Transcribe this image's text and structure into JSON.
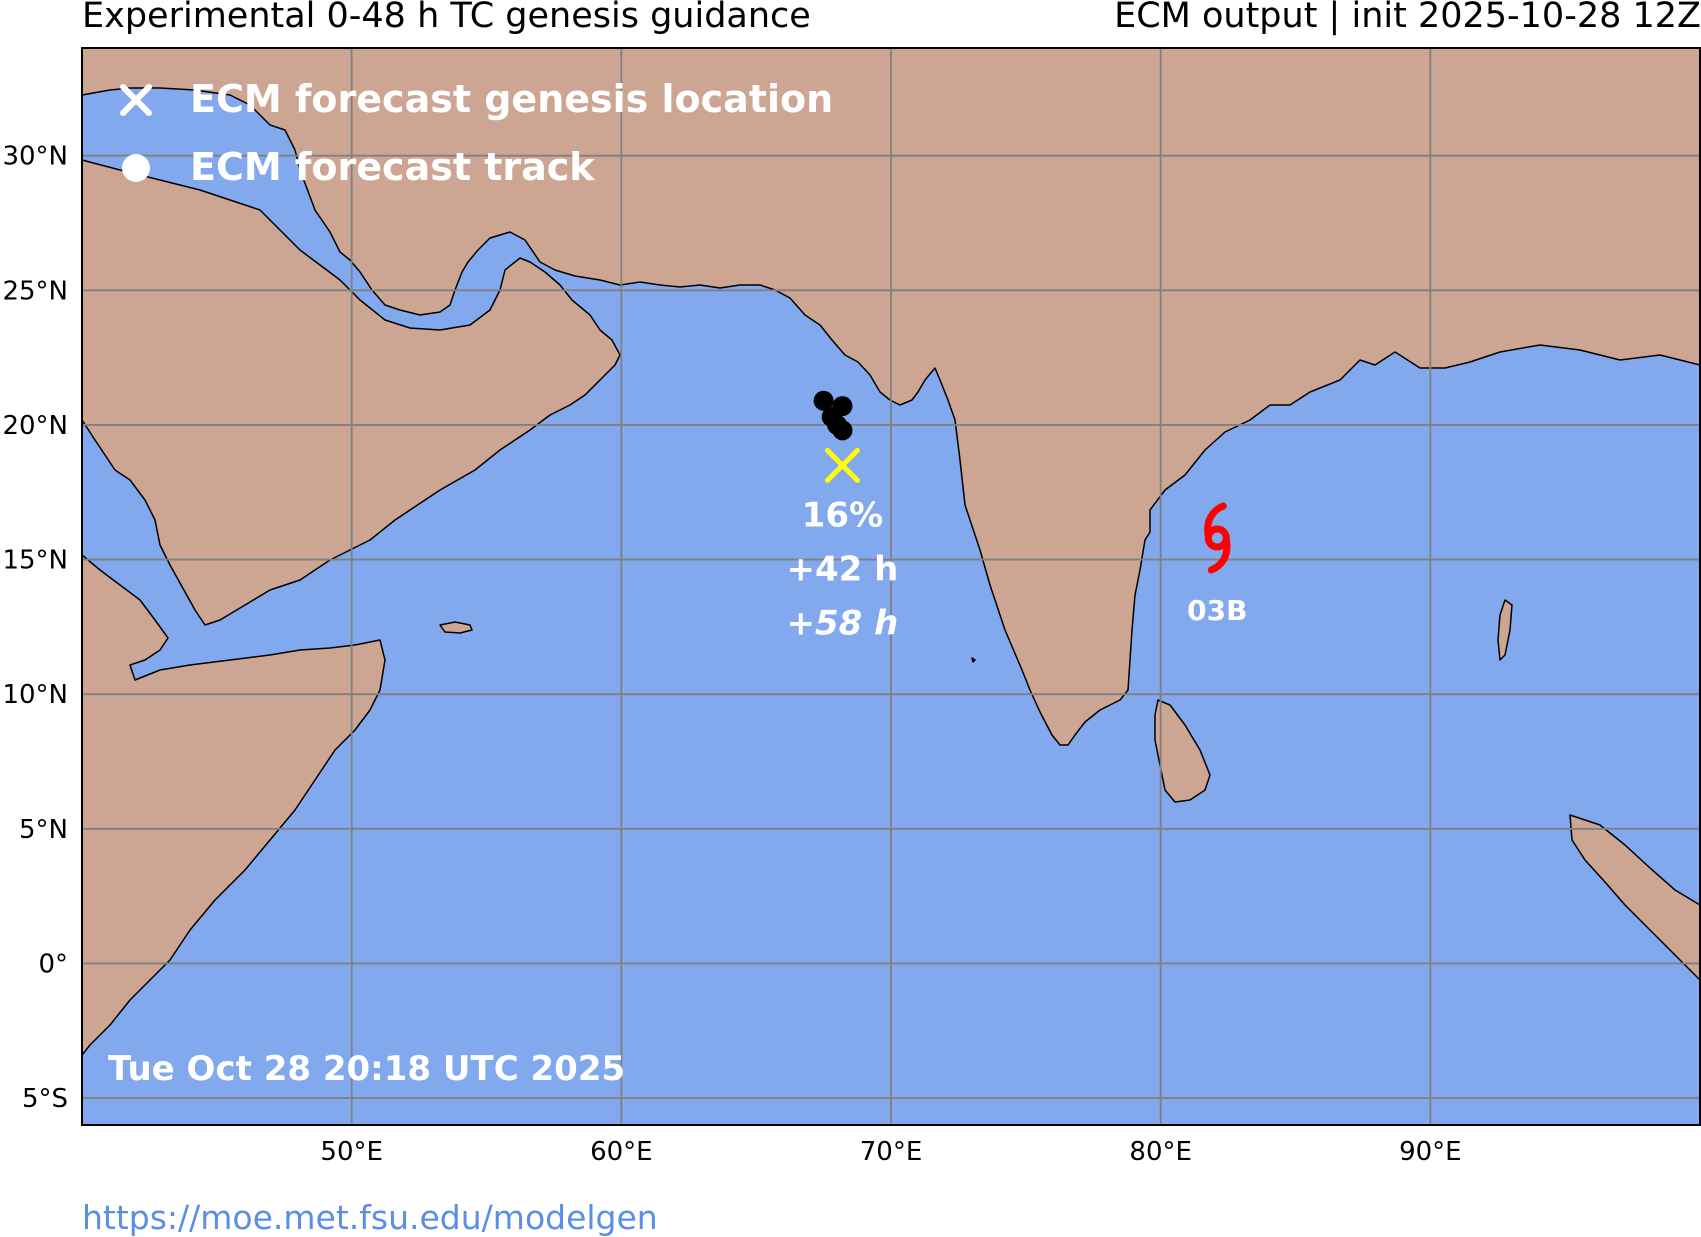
{
  "header": {
    "title_left": "Experimental 0-48 h TC genesis guidance",
    "title_right": "ECM output | init 2025-10-28 12Z"
  },
  "legend": [
    {
      "symbol": "x",
      "label": "ECM forecast genesis location"
    },
    {
      "symbol": "dot",
      "label": "ECM forecast track"
    }
  ],
  "colors": {
    "ocean": "#82a8ee",
    "land": "#cda593",
    "genesis": "#ffff00",
    "storm": "#ff0000"
  },
  "map": {
    "lon_range": [
      40,
      100
    ],
    "lat_range": [
      -6,
      34
    ],
    "lat_ticks": [
      {
        "lat": 30,
        "label": "30°N"
      },
      {
        "lat": 25,
        "label": "25°N"
      },
      {
        "lat": 20,
        "label": "20°N"
      },
      {
        "lat": 15,
        "label": "15°N"
      },
      {
        "lat": 10,
        "label": "10°N"
      },
      {
        "lat": 5,
        "label": "5°N"
      },
      {
        "lat": 0,
        "label": "0°"
      },
      {
        "lat": -5,
        "label": "5°S"
      }
    ],
    "lon_ticks": [
      {
        "lon": 50,
        "label": "50°E"
      },
      {
        "lon": 60,
        "label": "60°E"
      },
      {
        "lon": 70,
        "label": "70°E"
      },
      {
        "lon": 80,
        "label": "80°E"
      },
      {
        "lon": 90,
        "label": "90°E"
      }
    ]
  },
  "genesis": {
    "lon": 68.2,
    "lat": 18.5,
    "probability": "16%",
    "lead_time": "+42 h",
    "lead_time_italic": "+58 h"
  },
  "track_points": [
    {
      "lon": 67.5,
      "lat": 20.9
    },
    {
      "lon": 68.2,
      "lat": 20.7
    },
    {
      "lon": 67.8,
      "lat": 20.3
    },
    {
      "lon": 68.0,
      "lat": 20.0
    },
    {
      "lon": 68.2,
      "lat": 19.8
    }
  ],
  "active_storm": {
    "name": "03B",
    "lon": 82.1,
    "lat": 15.8
  },
  "timestamp": "Tue Oct 28 20:18 UTC 2025",
  "footer": {
    "url": "https://moe.met.fsu.edu/modelgen"
  }
}
